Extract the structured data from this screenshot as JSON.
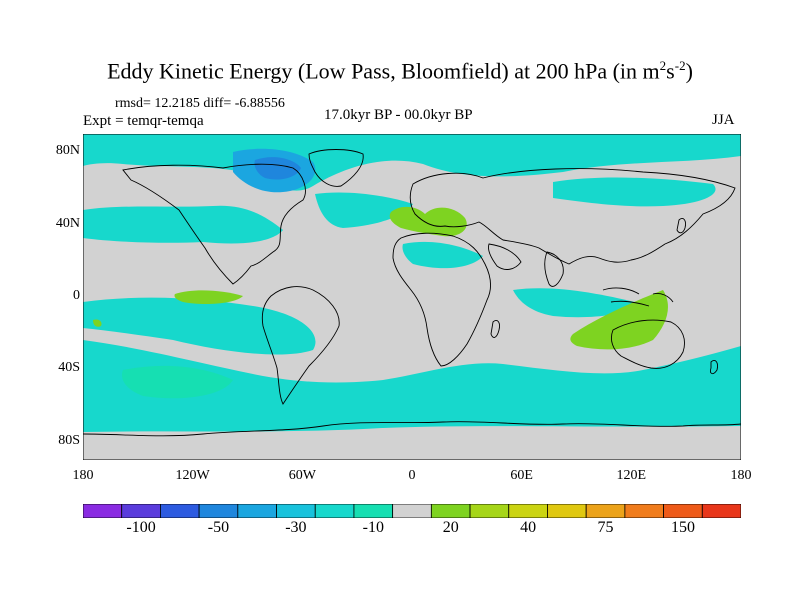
{
  "title": {
    "main": "Eddy Kinetic Energy (Low Pass, Bloomfield) at 200 hPa (in m",
    "sup1": "2",
    "s": "s",
    "sup2": "-2",
    "close": ")"
  },
  "stats": "rmsd= 12.2185 diff= -6.88556",
  "experiment": "Expt = temqr-temqa",
  "period": "17.0kyr BP - 00.0kyr BP",
  "season": "JJA",
  "map": {
    "lon_range": [
      -180,
      180
    ],
    "lat_range": [
      -90,
      90
    ],
    "lat_ticks": [
      {
        "value": 80,
        "label": "80N"
      },
      {
        "value": 40,
        "label": "40N"
      },
      {
        "value": 0,
        "label": "0"
      },
      {
        "value": -40,
        "label": "40S"
      },
      {
        "value": -80,
        "label": "80S"
      }
    ],
    "lon_ticks": [
      {
        "value": -180,
        "label": "180"
      },
      {
        "value": -120,
        "label": "120W"
      },
      {
        "value": -60,
        "label": "60W"
      },
      {
        "value": 0,
        "label": "0"
      },
      {
        "value": 60,
        "label": "60E"
      },
      {
        "value": 120,
        "label": "120E"
      },
      {
        "value": 180,
        "label": "180"
      }
    ],
    "background_color": "#d2d2d2"
  },
  "colorbar": {
    "colors": [
      "#8a2be2",
      "#5a3cdc",
      "#2d5be0",
      "#1f86dd",
      "#1ba6e0",
      "#18c2dc",
      "#17d8cc",
      "#16dfb2",
      "#d2d2d2",
      "#7ed321",
      "#a6d619",
      "#cbd412",
      "#e0c810",
      "#eca31a",
      "#f07c1c",
      "#ee5a18",
      "#e8361a"
    ],
    "labels": [
      {
        "text": "-100",
        "index": 1.5
      },
      {
        "text": "-50",
        "index": 3.5
      },
      {
        "text": "-30",
        "index": 5.5
      },
      {
        "text": "-10",
        "index": 7.5
      },
      {
        "text": "20",
        "index": 9.5
      },
      {
        "text": "40",
        "index": 11.5
      },
      {
        "text": "75",
        "index": 13.5
      },
      {
        "text": "150",
        "index": 15.5
      }
    ]
  }
}
